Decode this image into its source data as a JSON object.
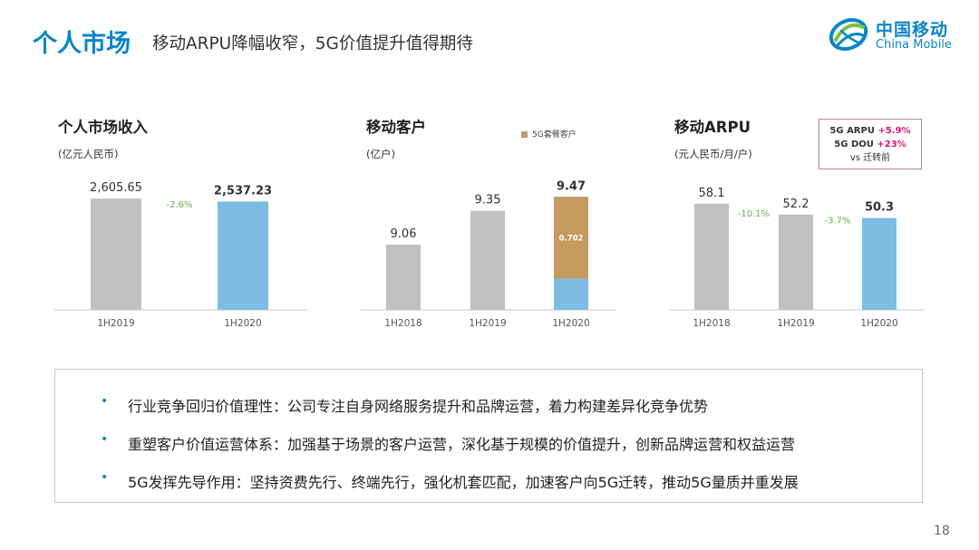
{
  "header": {
    "title": "个人市场",
    "subtitle": "移动ARPU降幅收窄，5G价值提升值得期待"
  },
  "logo": {
    "cn": "中国移动",
    "en": "China Mobile"
  },
  "colors": {
    "accent": "#0b85c8",
    "gray_bar": "#c0c0c0",
    "blue_bar": "#7dbde4",
    "gold_bar": "#c49a5e",
    "growth_green": "#6ab04c",
    "highlight_magenta": "#e0157a"
  },
  "charts_text": {
    "revenue": {
      "title": "个人市场收入",
      "unit": "(亿元人民币)"
    },
    "customers": {
      "title": "移动客户",
      "unit": "(亿户)",
      "legend": "5G套餐客户"
    },
    "arpu": {
      "title": "移动ARPU",
      "unit": "(元人民币/月/户)"
    }
  },
  "callout": {
    "line1_prefix": "5G ARPU ",
    "line1_value": "+5.9%",
    "line2_prefix": "5G DOU ",
    "line2_value": "+23%",
    "line3": "vs 迁转前"
  },
  "chart_data": [
    {
      "type": "bar",
      "title": "个人市场收入",
      "ylabel": "(亿元人民币)",
      "categories": [
        "1H2019",
        "1H2020"
      ],
      "values": [
        2605.65,
        2537.23
      ],
      "labels": [
        "2,605.65",
        "2,537.23"
      ],
      "changes": [
        {
          "between": [
            0,
            1
          ],
          "label": "-2.6%"
        }
      ],
      "ylim": [
        0,
        2800
      ]
    },
    {
      "type": "bar",
      "title": "移动客户",
      "ylabel": "(亿户)",
      "categories": [
        "1H2018",
        "1H2019",
        "1H2020"
      ],
      "values": [
        9.06,
        9.35,
        9.47
      ],
      "labels": [
        "9.06",
        "9.35",
        "9.47"
      ],
      "stacked_segment": {
        "index": 2,
        "name": "5G套餐客户",
        "value": 0.702,
        "label": "0.702"
      },
      "ylim": [
        8.5,
        9.55
      ]
    },
    {
      "type": "bar",
      "title": "移动ARPU",
      "ylabel": "(元人民币/月/户)",
      "categories": [
        "1H2018",
        "1H2019",
        "1H2020"
      ],
      "values": [
        58.1,
        52.2,
        50.3
      ],
      "labels": [
        "58.1",
        "52.2",
        "50.3"
      ],
      "changes": [
        {
          "between": [
            0,
            1
          ],
          "label": "-10.1%"
        },
        {
          "between": [
            1,
            2
          ],
          "label": "-3.7%"
        }
      ],
      "ylim": [
        0,
        62
      ]
    }
  ],
  "bullets": [
    "行业竞争回归价值理性：公司专注自身网络服务提升和品牌运营，着力构建差异化竞争优势",
    "重塑客户价值运营体系：加强基于场景的客户运营，深化基于规模的价值提升，创新品牌运营和权益运营",
    "5G发挥先导作用：坚持资费先行、终端先行，强化机套匹配，加速客户向5G迁转，推动5G量质并重发展"
  ],
  "bullet_symbol": "•",
  "page_number": "18"
}
